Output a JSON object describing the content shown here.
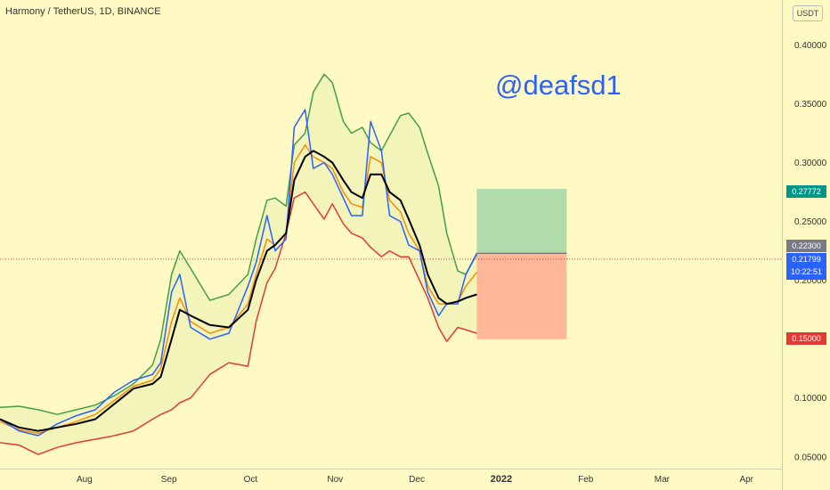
{
  "header": {
    "title": "Harmony / TetherUS, 1D, BINANCE",
    "watermark": "@deafsd1",
    "unit": "USDT"
  },
  "colors": {
    "background": "#FFF9C4",
    "upper_band": "#43A047",
    "lower_band": "#E53935",
    "price": "#2962FF",
    "orange_ma": "#FB8C00",
    "black_ma": "#000000",
    "target_zone": "#A5D6A7",
    "stop_zone": "#FFAB91",
    "target_tag": "#009688",
    "current_tag": "#2962FF",
    "stop_tag": "#E53935",
    "entry_tag": "#787B86"
  },
  "price_tags": {
    "target": "0.27772",
    "entry": "0.22300",
    "current": "0.21799",
    "countdown": "10:22:51",
    "stop": "0.15000"
  },
  "chart_data": {
    "type": "line",
    "title": "Harmony / TetherUS, 1D, BINANCE",
    "xlabel": "",
    "ylabel": "",
    "x_ticks": [
      "Aug",
      "Sep",
      "Oct",
      "Nov",
      "Dec",
      "2022",
      "Feb",
      "Mar",
      "Apr"
    ],
    "y_ticks": [
      "0.40000",
      "0.35000",
      "0.30000",
      "0.25000",
      "0.20000",
      "0.15000",
      "0.10000",
      "0.05000"
    ],
    "ylim": [
      0.04,
      0.42
    ],
    "grid": false,
    "dates": [
      "2021-07-01",
      "2021-07-08",
      "2021-07-15",
      "2021-07-22",
      "2021-07-29",
      "2021-08-05",
      "2021-08-12",
      "2021-08-19",
      "2021-08-26",
      "2021-08-29",
      "2021-09-02",
      "2021-09-05",
      "2021-09-09",
      "2021-09-16",
      "2021-09-23",
      "2021-09-30",
      "2021-10-03",
      "2021-10-07",
      "2021-10-10",
      "2021-10-14",
      "2021-10-17",
      "2021-10-21",
      "2021-10-24",
      "2021-10-28",
      "2021-10-31",
      "2021-11-04",
      "2021-11-07",
      "2021-11-11",
      "2021-11-14",
      "2021-11-18",
      "2021-11-21",
      "2021-11-25",
      "2021-11-28",
      "2021-12-02",
      "2021-12-05",
      "2021-12-09",
      "2021-12-12",
      "2021-12-16",
      "2021-12-19",
      "2021-12-23"
    ],
    "series": [
      {
        "key": "upper",
        "values": [
          0.092,
          0.093,
          0.09,
          0.086,
          0.09,
          0.094,
          0.102,
          0.112,
          0.128,
          0.15,
          0.205,
          0.225,
          0.21,
          0.183,
          0.188,
          0.205,
          0.235,
          0.268,
          0.27,
          0.263,
          0.315,
          0.325,
          0.36,
          0.375,
          0.368,
          0.335,
          0.325,
          0.33,
          0.317,
          0.31,
          0.323,
          0.34,
          0.342,
          0.33,
          0.308,
          0.28,
          0.24,
          0.208,
          0.205,
          0.222
        ]
      },
      {
        "key": "lower",
        "values": [
          0.062,
          0.06,
          0.052,
          0.058,
          0.062,
          0.065,
          0.068,
          0.072,
          0.082,
          0.086,
          0.09,
          0.096,
          0.1,
          0.12,
          0.13,
          0.127,
          0.165,
          0.198,
          0.21,
          0.24,
          0.27,
          0.275,
          0.265,
          0.252,
          0.265,
          0.248,
          0.24,
          0.236,
          0.228,
          0.22,
          0.225,
          0.22,
          0.22,
          0.2,
          0.185,
          0.16,
          0.148,
          0.16,
          0.158,
          0.155
        ]
      },
      {
        "key": "price",
        "values": [
          0.082,
          0.072,
          0.068,
          0.078,
          0.085,
          0.09,
          0.105,
          0.115,
          0.12,
          0.13,
          0.19,
          0.205,
          0.16,
          0.15,
          0.155,
          0.195,
          0.215,
          0.255,
          0.225,
          0.235,
          0.33,
          0.345,
          0.295,
          0.3,
          0.29,
          0.27,
          0.255,
          0.255,
          0.335,
          0.31,
          0.255,
          0.25,
          0.23,
          0.225,
          0.19,
          0.17,
          0.18,
          0.18,
          0.205,
          0.223
        ]
      },
      {
        "key": "orange",
        "values": [
          0.08,
          0.073,
          0.07,
          0.075,
          0.08,
          0.086,
          0.098,
          0.11,
          0.115,
          0.125,
          0.165,
          0.185,
          0.165,
          0.155,
          0.16,
          0.18,
          0.205,
          0.235,
          0.23,
          0.24,
          0.3,
          0.315,
          0.305,
          0.3,
          0.295,
          0.275,
          0.265,
          0.262,
          0.305,
          0.3,
          0.268,
          0.258,
          0.24,
          0.225,
          0.195,
          0.18,
          0.18,
          0.182,
          0.195,
          0.207
        ]
      },
      {
        "key": "black",
        "values": [
          0.082,
          0.075,
          0.072,
          0.075,
          0.078,
          0.082,
          0.095,
          0.108,
          0.112,
          0.118,
          0.15,
          0.175,
          0.17,
          0.162,
          0.16,
          0.175,
          0.2,
          0.225,
          0.23,
          0.24,
          0.285,
          0.305,
          0.31,
          0.305,
          0.3,
          0.285,
          0.275,
          0.27,
          0.29,
          0.29,
          0.275,
          0.268,
          0.252,
          0.23,
          0.205,
          0.185,
          0.18,
          0.182,
          0.185,
          0.188
        ]
      }
    ],
    "position": {
      "entry": 0.223,
      "target": 0.27772,
      "stop": 0.15,
      "start": "2021-12-23",
      "end": "2022-01-25"
    }
  }
}
